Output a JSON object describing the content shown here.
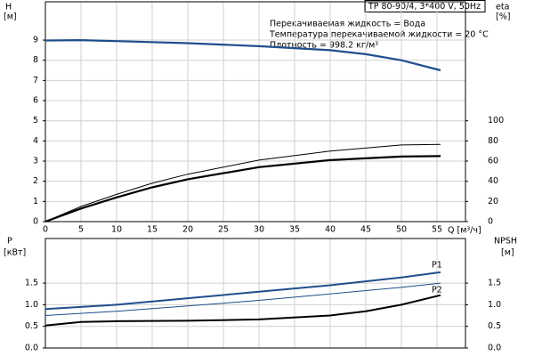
{
  "chart_data": [
    {
      "type": "line",
      "title": "TP 80-90/4, 3*400 V, 50Hz",
      "annotations": [
        "Перекачиваемая жидкость = Вода",
        "Температура перекачиваемой жидкости = 20 °C",
        "Плотность = 998.2 кг/м³"
      ],
      "xlabel": "Q [м³/ч]",
      "ylabel": [
        "H",
        "[м]"
      ],
      "y2label": [
        "eta",
        "[%]"
      ],
      "xlim": [
        0,
        59
      ],
      "xticks": [
        0,
        5,
        10,
        15,
        20,
        25,
        30,
        35,
        40,
        45,
        50,
        55
      ],
      "ylim": [
        0,
        10.9
      ],
      "yticks": [
        0,
        1,
        2,
        3,
        4,
        5,
        6,
        7,
        8,
        9
      ],
      "y2lim": [
        0,
        218
      ],
      "y2ticks": [
        0,
        20,
        40,
        60,
        80,
        100
      ],
      "grid": true,
      "series": [
        {
          "color": "#1f4e8c",
          "line_width": 2.2,
          "x": [
            0,
            5,
            10,
            20,
            30,
            40,
            45,
            50,
            55.5
          ],
          "values": [
            8.98,
            9.0,
            8.95,
            8.85,
            8.7,
            8.5,
            8.3,
            8.0,
            7.5
          ]
        },
        {
          "color": "#000000",
          "line_width": 1,
          "axis": "y2",
          "x": [
            0,
            5,
            10,
            15,
            20,
            30,
            40,
            50,
            55.5
          ],
          "values": [
            0,
            15,
            27,
            38,
            47,
            61,
            70,
            76,
            76.5
          ]
        },
        {
          "color": "#000000",
          "line_width": 2.2,
          "axis": "y2",
          "x": [
            0,
            5,
            10,
            15,
            20,
            30,
            40,
            50,
            55.5
          ],
          "values": [
            0,
            13,
            24,
            34,
            42,
            54,
            61,
            64.5,
            65
          ]
        }
      ]
    },
    {
      "type": "line",
      "ylabel": [
        "P",
        "[кВт]"
      ],
      "y2label": [
        "NPSH",
        "[м]"
      ],
      "xlim": [
        0,
        59
      ],
      "ylim": [
        0,
        2.53
      ],
      "yticks": [
        {
          "value": 0,
          "label": "0.0"
        },
        0.5,
        {
          "value": 1,
          "label": "1.0"
        },
        1.5
      ],
      "y2lim": [
        0,
        2.53
      ],
      "y2ticks": [
        {
          "value": 0,
          "label": "0.0"
        },
        0.5,
        {
          "value": 1,
          "label": "1.0"
        },
        1.5
      ],
      "grid": true,
      "series": [
        {
          "name": "P1",
          "color": "#1f4e8c",
          "line_width": 2,
          "x": [
            0,
            10,
            20,
            30,
            40,
            50,
            55.5
          ],
          "values": [
            0.9,
            1.0,
            1.15,
            1.3,
            1.45,
            1.63,
            1.75
          ]
        },
        {
          "name": "P2",
          "color": "#1f4e8c",
          "line_width": 1,
          "x": [
            0,
            10,
            20,
            30,
            40,
            50,
            55.5
          ],
          "values": [
            0.75,
            0.85,
            0.97,
            1.1,
            1.25,
            1.4,
            1.5
          ]
        },
        {
          "color": "#000000",
          "line_width": 2,
          "axis": "y2",
          "x": [
            0,
            5,
            10,
            20,
            30,
            40,
            45,
            50,
            55.5
          ],
          "values": [
            0.52,
            0.6,
            0.62,
            0.63,
            0.66,
            0.75,
            0.85,
            1.0,
            1.22
          ]
        }
      ]
    }
  ]
}
